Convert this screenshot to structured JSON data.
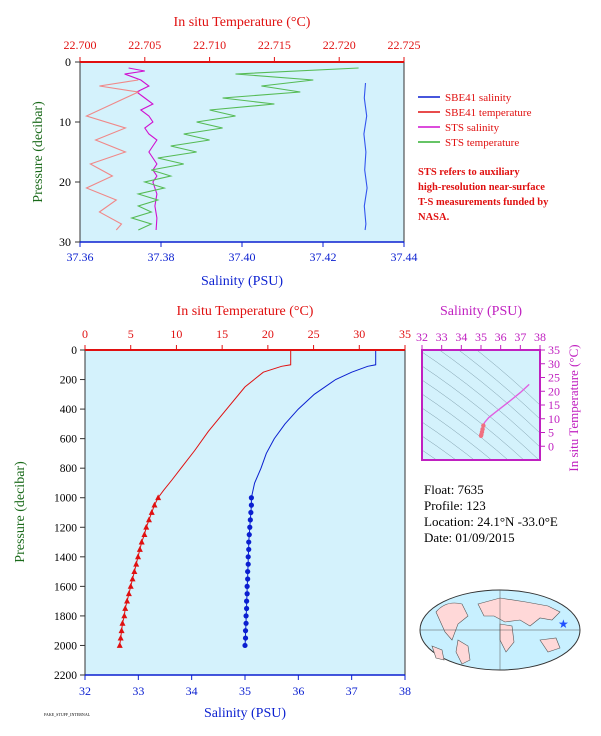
{
  "chart_data": [
    {
      "type": "line",
      "title_top_axis": "In situ Temperature (°C)",
      "xlabel": "Salinity (PSU)",
      "ylabel": "Pressure (decibar)",
      "xlim": [
        37.36,
        37.44
      ],
      "top_xlim": [
        22.7,
        22.725
      ],
      "ylim": [
        30,
        0
      ],
      "x_ticks": [
        "37.36",
        "37.38",
        "37.40",
        "37.42",
        "37.44"
      ],
      "top_ticks": [
        "22.700",
        "22.705",
        "22.710",
        "22.715",
        "22.720",
        "22.725"
      ],
      "y_ticks": [
        "0",
        "10",
        "20",
        "30"
      ],
      "legend_position": "right",
      "legend": [
        {
          "label": "SBE41 salinity",
          "color": "#0a1fd0"
        },
        {
          "label": "SBE41 temperature",
          "color": "#e01010"
        },
        {
          "label": "STS salinity",
          "color": "#d010d0"
        },
        {
          "label": "STS temperature",
          "color": "#33b033"
        }
      ],
      "note": "STS refers to auxiliary high-resolution near-surface T-S measurements funded by NASA.",
      "series": [
        {
          "name": "SBE41 salinity",
          "axis": "bottom",
          "color": "#3355ee",
          "points": [
            [
              37.4305,
              3.5
            ],
            [
              37.4302,
              6
            ],
            [
              37.4308,
              9
            ],
            [
              37.4301,
              12
            ],
            [
              37.4306,
              15
            ],
            [
              37.4303,
              18
            ],
            [
              37.4309,
              21
            ],
            [
              37.4302,
              24
            ],
            [
              37.4306,
              27
            ],
            [
              37.4304,
              28
            ]
          ]
        },
        {
          "name": "STS salinity",
          "axis": "bottom",
          "color": "#d010d0",
          "points": [
            [
              37.372,
              1
            ],
            [
              37.376,
              1.5
            ],
            [
              37.371,
              2
            ],
            [
              37.375,
              3
            ],
            [
              37.377,
              4
            ],
            [
              37.374,
              5
            ],
            [
              37.376,
              6
            ],
            [
              37.378,
              7
            ],
            [
              37.375,
              8
            ],
            [
              37.377,
              9
            ],
            [
              37.378,
              10
            ],
            [
              37.376,
              11
            ],
            [
              37.377,
              12
            ],
            [
              37.379,
              13
            ],
            [
              37.378,
              14
            ],
            [
              37.377,
              15
            ],
            [
              37.378,
              16
            ],
            [
              37.379,
              17
            ],
            [
              37.378,
              18
            ],
            [
              37.379,
              19
            ],
            [
              37.378,
              20
            ],
            [
              37.379,
              22
            ],
            [
              37.3785,
              24
            ],
            [
              37.379,
              26
            ],
            [
              37.3788,
              28
            ]
          ]
        },
        {
          "name": "STS temperature",
          "axis": "top",
          "color": "#55bb55",
          "points": [
            [
              22.7215,
              1
            ],
            [
              22.712,
              2
            ],
            [
              22.718,
              3
            ],
            [
              22.714,
              4
            ],
            [
              22.717,
              5
            ],
            [
              22.711,
              6
            ],
            [
              22.715,
              7
            ],
            [
              22.71,
              8
            ],
            [
              22.712,
              9
            ],
            [
              22.709,
              10
            ],
            [
              22.711,
              11
            ],
            [
              22.708,
              12
            ],
            [
              22.71,
              13
            ],
            [
              22.707,
              14
            ],
            [
              22.709,
              15
            ],
            [
              22.706,
              16
            ],
            [
              22.708,
              17
            ],
            [
              22.7055,
              18
            ],
            [
              22.707,
              19
            ],
            [
              22.705,
              20
            ],
            [
              22.7065,
              21
            ],
            [
              22.7045,
              22
            ],
            [
              22.706,
              23
            ],
            [
              22.7045,
              24
            ],
            [
              22.7055,
              25
            ],
            [
              22.704,
              26
            ],
            [
              22.7055,
              27
            ],
            [
              22.7045,
              28
            ]
          ]
        },
        {
          "name": "SBE41 temperature",
          "axis": "top",
          "color": "#f08888",
          "points": [
            [
              22.7045,
              3
            ],
            [
              22.7015,
              4
            ],
            [
              22.7045,
              5
            ],
            [
              22.7025,
              7
            ],
            [
              22.7005,
              9
            ],
            [
              22.7035,
              11
            ],
            [
              22.7012,
              13
            ],
            [
              22.7035,
              15
            ],
            [
              22.7008,
              17
            ],
            [
              22.7025,
              19
            ],
            [
              22.7005,
              21
            ],
            [
              22.7028,
              23
            ],
            [
              22.7015,
              25
            ],
            [
              22.7032,
              27
            ],
            [
              22.7028,
              28
            ]
          ]
        }
      ]
    },
    {
      "type": "line",
      "title_top_axis": "In situ Temperature (°C)",
      "xlabel": "Salinity (PSU)",
      "ylabel": "Pressure (decibar)",
      "xlim": [
        32,
        38
      ],
      "top_xlim": [
        0,
        35
      ],
      "ylim": [
        2200,
        0
      ],
      "x_ticks": [
        "32",
        "33",
        "34",
        "35",
        "36",
        "37",
        "38"
      ],
      "top_ticks": [
        "0",
        "5",
        "10",
        "15",
        "20",
        "25",
        "30",
        "35"
      ],
      "y_ticks": [
        "0",
        "200",
        "400",
        "600",
        "800",
        "1000",
        "1200",
        "1400",
        "1600",
        "1800",
        "2000",
        "2200"
      ],
      "series": [
        {
          "name": "Salinity",
          "axis": "bottom",
          "color": "#0a1fd0",
          "marker": "circle",
          "points": [
            [
              37.45,
              0
            ],
            [
              37.45,
              100
            ],
            [
              37.3,
              110
            ],
            [
              37.0,
              150
            ],
            [
              36.7,
              200
            ],
            [
              36.3,
              300
            ],
            [
              36.0,
              400
            ],
            [
              35.75,
              500
            ],
            [
              35.55,
              600
            ],
            [
              35.4,
              700
            ],
            [
              35.3,
              800
            ],
            [
              35.18,
              900
            ],
            [
              35.12,
              1000
            ],
            [
              35.12,
              1050
            ],
            [
              35.11,
              1100
            ],
            [
              35.1,
              1150
            ],
            [
              35.09,
              1200
            ],
            [
              35.08,
              1250
            ],
            [
              35.07,
              1300
            ],
            [
              35.07,
              1350
            ],
            [
              35.06,
              1400
            ],
            [
              35.06,
              1450
            ],
            [
              35.05,
              1500
            ],
            [
              35.05,
              1550
            ],
            [
              35.04,
              1600
            ],
            [
              35.04,
              1650
            ],
            [
              35.03,
              1700
            ],
            [
              35.03,
              1750
            ],
            [
              35.02,
              1800
            ],
            [
              35.02,
              1850
            ],
            [
              35.01,
              1900
            ],
            [
              35.01,
              1950
            ],
            [
              35.0,
              2000
            ]
          ],
          "marker_from": 1000
        },
        {
          "name": "Temperature",
          "axis": "top",
          "color": "#e01010",
          "marker": "triangle",
          "points": [
            [
              22.5,
              0
            ],
            [
              22.5,
              100
            ],
            [
              21.5,
              110
            ],
            [
              19.5,
              150
            ],
            [
              17.5,
              250
            ],
            [
              15.5,
              400
            ],
            [
              13.5,
              550
            ],
            [
              12,
              680
            ],
            [
              10.5,
              800
            ],
            [
              9.5,
              880
            ],
            [
              8.6,
              950
            ],
            [
              8.0,
              1000
            ],
            [
              7.6,
              1050
            ],
            [
              7.3,
              1100
            ],
            [
              7.0,
              1150
            ],
            [
              6.7,
              1200
            ],
            [
              6.5,
              1250
            ],
            [
              6.2,
              1300
            ],
            [
              6.0,
              1350
            ],
            [
              5.8,
              1400
            ],
            [
              5.6,
              1450
            ],
            [
              5.4,
              1500
            ],
            [
              5.2,
              1550
            ],
            [
              5.0,
              1600
            ],
            [
              4.8,
              1650
            ],
            [
              4.6,
              1700
            ],
            [
              4.4,
              1750
            ],
            [
              4.3,
              1800
            ],
            [
              4.1,
              1850
            ],
            [
              4.0,
              1900
            ],
            [
              3.9,
              1950
            ],
            [
              3.8,
              2000
            ]
          ],
          "marker_from": 1000
        }
      ]
    },
    {
      "type": "scatter",
      "xlabel_top": "Salinity (PSU)",
      "ylabel_right": "In situ Temperature (°C)",
      "xlim": [
        32,
        38
      ],
      "ylim": [
        -5,
        35
      ],
      "x_ticks": [
        "32",
        "33",
        "34",
        "35",
        "36",
        "37",
        "38"
      ],
      "y_ticks": [
        "0",
        "5",
        "10",
        "15",
        "20",
        "25",
        "30",
        "35"
      ],
      "series": [
        {
          "name": "T-S",
          "color": "#e060e0",
          "points": [
            [
              37.45,
              22.5
            ],
            [
              37.0,
              19.5
            ],
            [
              36.3,
              15.5
            ],
            [
              35.75,
              12.5
            ],
            [
              35.4,
              10.5
            ],
            [
              35.18,
              8.6
            ],
            [
              35.12,
              7.5
            ],
            [
              35.08,
              6.2
            ],
            [
              35.05,
              5.2
            ],
            [
              35.02,
              4.3
            ],
            [
              35.0,
              3.8
            ]
          ]
        }
      ]
    }
  ],
  "info": {
    "float": "Float:  7635",
    "profile": "Profile:  123",
    "location": "Location:  24.1°N  -33.0°E",
    "date": "Date:  01/09/2015"
  },
  "map": {
    "marker_color": "#2050ff",
    "ocean_color": "#c8f0ff",
    "land_color": "#ffd8d8"
  },
  "footer_tag": "FAKE_STUFF_INTERNAL",
  "colors": {
    "plot_bg": "#d4f2fc",
    "axis_blue": "#0a1fd0",
    "axis_red": "#e01010",
    "ylabel_green": "#1a6a1a",
    "ts_magenta": "#c020c0"
  }
}
